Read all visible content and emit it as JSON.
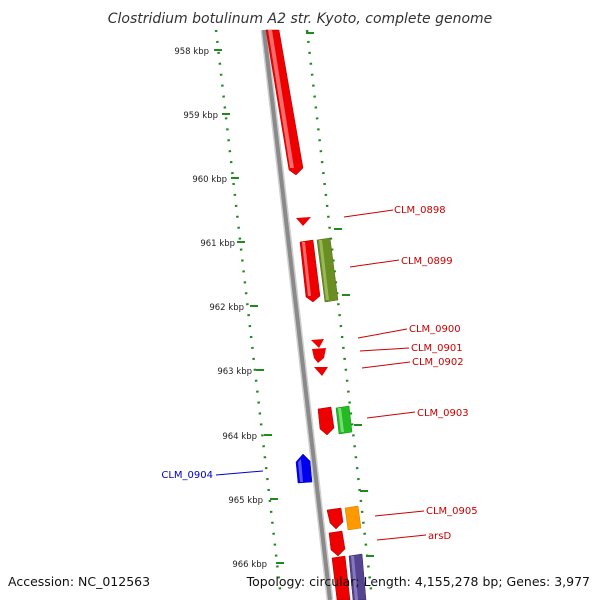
{
  "title": "Clostridium botulinum A2 str. Kyoto, complete genome",
  "accession": "Accession: NC_012563",
  "topology": "Topology: circular; Length: 4,155,278 bp; Genes: 3,977",
  "ticks": [
    {
      "label": "958 kbp"
    },
    {
      "label": "959 kbp"
    },
    {
      "label": "960 kbp"
    },
    {
      "label": "961 kbp"
    },
    {
      "label": "962 kbp"
    },
    {
      "label": "963 kbp"
    },
    {
      "label": "964 kbp"
    },
    {
      "label": "965 kbp"
    },
    {
      "label": "966 kbp"
    }
  ],
  "gene_labels": [
    {
      "name": "CLM_0898",
      "color": "#cc0000"
    },
    {
      "name": "CLM_0899",
      "color": "#cc0000"
    },
    {
      "name": "CLM_0900",
      "color": "#cc0000"
    },
    {
      "name": "CLM_0901",
      "color": "#cc0000"
    },
    {
      "name": "CLM_0902",
      "color": "#cc0000"
    },
    {
      "name": "CLM_0903",
      "color": "#cc0000"
    },
    {
      "name": "CLM_0904",
      "color": "#0000cc"
    },
    {
      "name": "CLM_0905",
      "color": "#cc0000"
    },
    {
      "name": "arsD",
      "color": "#cc0000"
    }
  ],
  "colors": {
    "backbone": "#8a8a8a",
    "ruler": "#228822",
    "cds_red": "#ee0000",
    "cds_olive": "#6b8e23",
    "cds_green": "#22bb22",
    "cds_blue": "#0000ee",
    "cds_orange": "#ff9900",
    "cds_purple": "#55448f"
  }
}
